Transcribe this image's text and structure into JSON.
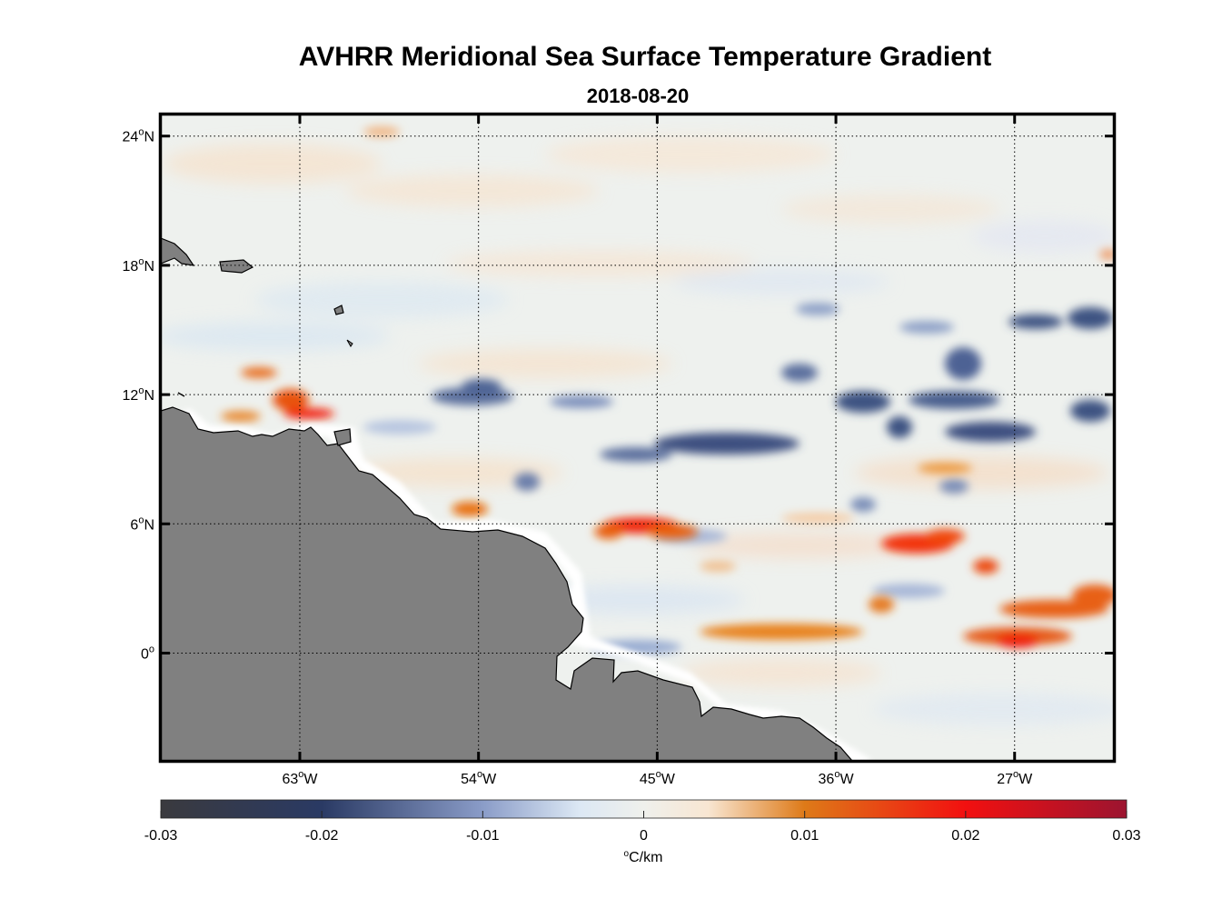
{
  "title": "AVHRR Meridional Sea Surface Temperature Gradient",
  "subtitle": "2018-08-20",
  "chart_data": {
    "type": "heatmap",
    "title": "AVHRR Meridional Sea Surface Temperature Gradient",
    "subtitle": "2018-08-20",
    "xlim": [
      -70,
      -22
    ],
    "ylim": [
      -5,
      25
    ],
    "x_ticks": [
      {
        "value": -63,
        "label": "63°W",
        "deg": "63",
        "hemi": "W"
      },
      {
        "value": -54,
        "label": "54°W",
        "deg": "54",
        "hemi": "W"
      },
      {
        "value": -45,
        "label": "45°W",
        "deg": "45",
        "hemi": "W"
      },
      {
        "value": -36,
        "label": "36°W",
        "deg": "36",
        "hemi": "W"
      },
      {
        "value": -27,
        "label": "27°W",
        "deg": "27",
        "hemi": "W"
      }
    ],
    "y_ticks": [
      {
        "value": 24,
        "label": "24°N",
        "deg": "24",
        "hemi": "N"
      },
      {
        "value": 18,
        "label": "18°N",
        "deg": "18",
        "hemi": "N"
      },
      {
        "value": 12,
        "label": "12°N",
        "deg": "12",
        "hemi": "N"
      },
      {
        "value": 6,
        "label": "6°N",
        "deg": "6",
        "hemi": "N"
      },
      {
        "value": 0,
        "label": "0°",
        "deg": "0",
        "hemi": ""
      }
    ],
    "grid": true,
    "colorbar": {
      "orientation": "horizontal",
      "location": "bottom",
      "min": -0.03,
      "max": 0.03,
      "ticks": [
        "-0.03",
        "-0.02",
        "-0.01",
        "0",
        "0.01",
        "0.02",
        "0.03"
      ],
      "tick_values": [
        -0.03,
        -0.02,
        -0.01,
        0,
        0.01,
        0.02,
        0.03
      ],
      "unit_label": "°C/km",
      "unit_text": "C/km",
      "stops": [
        {
          "value": -0.03,
          "color": "#3a3a3e"
        },
        {
          "value": -0.02,
          "color": "#2a3a64"
        },
        {
          "value": -0.01,
          "color": "#8a9cc8"
        },
        {
          "value": -0.004,
          "color": "#dce8f4"
        },
        {
          "value": 0,
          "color": "#eff0ec"
        },
        {
          "value": 0.004,
          "color": "#f8e6d2"
        },
        {
          "value": 0.01,
          "color": "#de7a18"
        },
        {
          "value": 0.02,
          "color": "#f21010"
        },
        {
          "value": 0.03,
          "color": "#9c1430"
        }
      ]
    },
    "land_color": "#808080",
    "background_value": 0,
    "features": [
      {
        "name": "band-warm-7N-46W",
        "sign": "positive",
        "lon": -46.5,
        "lat": 6.3,
        "value": 0.018
      },
      {
        "name": "band-warm-5N-33W",
        "sign": "positive",
        "lon": -33.0,
        "lat": 5.5,
        "value": 0.016
      },
      {
        "name": "band-warm-2N-26W",
        "sign": "positive",
        "lon": -26.0,
        "lat": 2.0,
        "value": 0.014
      },
      {
        "name": "band-warm-0N-29W",
        "sign": "positive",
        "lon": -29.5,
        "lat": 0.5,
        "value": 0.016
      },
      {
        "name": "band-warm-1N-41W",
        "sign": "positive",
        "lon": -41.0,
        "lat": 1.2,
        "value": 0.01
      },
      {
        "name": "band-warm-11N-63W",
        "sign": "positive",
        "lon": -63.0,
        "lat": 11.5,
        "value": 0.016
      },
      {
        "name": "band-cool-10N-42W",
        "sign": "negative",
        "lon": -42.0,
        "lat": 9.8,
        "value": -0.016
      },
      {
        "name": "band-cool-12N-35W",
        "sign": "negative",
        "lon": -35.0,
        "lat": 12.0,
        "value": -0.016
      },
      {
        "name": "band-cool-11N-29W",
        "sign": "negative",
        "lon": -29.0,
        "lat": 11.0,
        "value": -0.018
      },
      {
        "name": "band-cool-15N-25W",
        "sign": "negative",
        "lon": -25.0,
        "lat": 15.0,
        "value": -0.016
      },
      {
        "name": "band-cool-12N-53W",
        "sign": "negative",
        "lon": -53.0,
        "lat": 12.0,
        "value": -0.012
      }
    ]
  }
}
